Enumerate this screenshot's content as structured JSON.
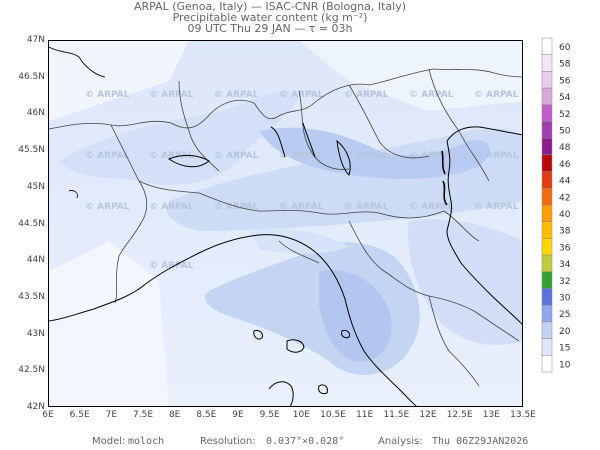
{
  "header": {
    "line1": "ARPAL (Genoa, Italy)  —  ISAC-CNR (Bologna, Italy)",
    "line2": "Precipitable water content (kg m⁻²)",
    "line3": "09 UTC Thu 29 JAN  —  τ = 03h"
  },
  "map": {
    "lat_labels": [
      "47N",
      "46.5N",
      "46N",
      "45.5N",
      "45N",
      "44.5N",
      "44N",
      "43.5N",
      "43N",
      "42.5N",
      "42N"
    ],
    "lon_labels": [
      "6E",
      "6.5E",
      "7E",
      "7.5E",
      "8E",
      "8.5E",
      "9E",
      "9.5E",
      "10E",
      "10.5E",
      "11E",
      "11.5E",
      "12E",
      "12.5E",
      "13E",
      "13.5E"
    ],
    "watermark": "© ARPAL",
    "colors": {
      "background_field": "#eaf2fc",
      "moist_field": "#c8d8f6",
      "wettest_field": "#aec3ee",
      "coast": "#000000",
      "border": "#333333"
    }
  },
  "colorbar": {
    "labels": [
      "60",
      "58",
      "56",
      "54",
      "52",
      "50",
      "48",
      "46",
      "44",
      "42",
      "40",
      "38",
      "36",
      "34",
      "32",
      "30",
      "25",
      "20",
      "15",
      "10"
    ],
    "colors": [
      "#ffffff",
      "#f4e6f4",
      "#e9cde9",
      "#d9a8dc",
      "#c35ccc",
      "#a040b0",
      "#8a1c8e",
      "#b80808",
      "#e23c14",
      "#f46c10",
      "#ff9e00",
      "#ffbc00",
      "#ffd700",
      "#bfcc3c",
      "#34a030",
      "#5a74dc",
      "#8ea8ec",
      "#c2d2f4",
      "#dde7f8",
      "#ffffff"
    ]
  },
  "footer": {
    "model_label": "Model:",
    "model_value": "moloch",
    "resolution_label": "Resolution:",
    "resolution_value": "0.037°×0.028°",
    "analysis_label": "Analysis:",
    "analysis_value": "Thu 06Z29JAN2026"
  }
}
